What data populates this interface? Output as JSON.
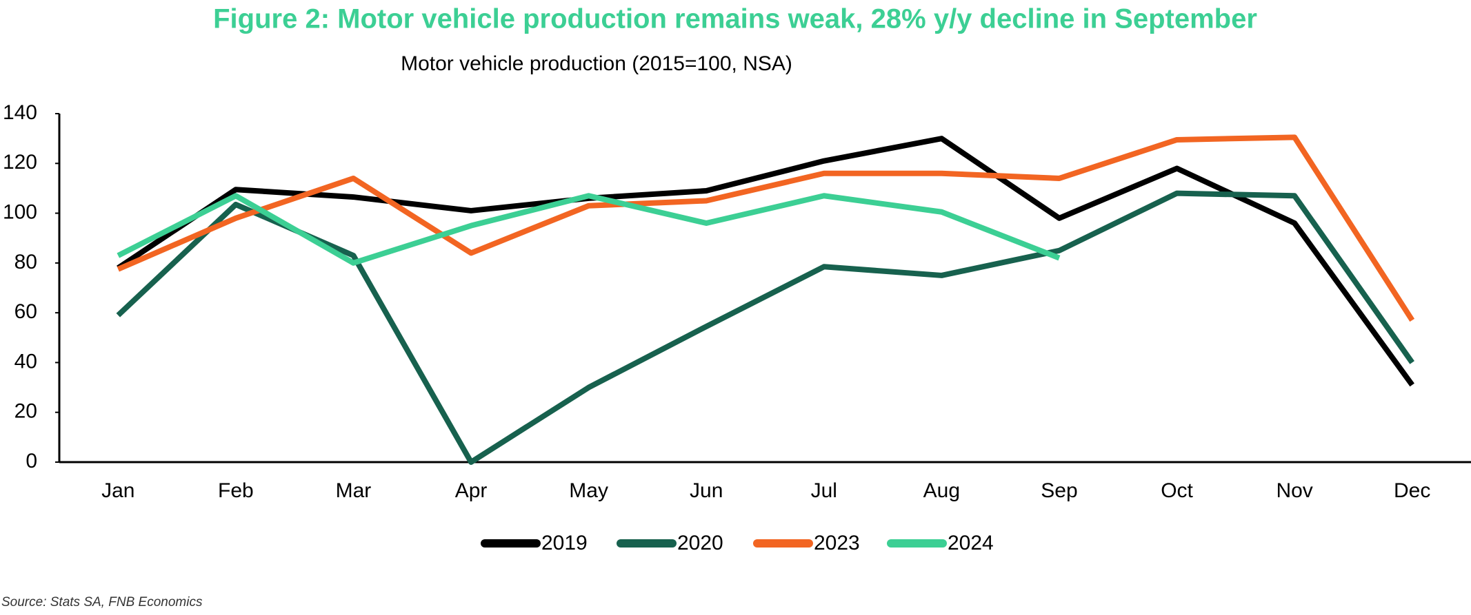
{
  "chart_data": {
    "type": "line",
    "title": "Figure 2: Motor vehicle production remains weak, 28% y/y decline in September",
    "subtitle": "Motor vehicle production (2015=100, NSA)",
    "source": "Source: Stats SA, FNB Economics",
    "categories": [
      "Jan",
      "Feb",
      "Mar",
      "Apr",
      "May",
      "Jun",
      "Jul",
      "Aug",
      "Sep",
      "Oct",
      "Nov",
      "Dec"
    ],
    "series": [
      {
        "name": "2019",
        "color": "#000000",
        "values": [
          78,
          109.5,
          106.5,
          101,
          106,
          109,
          121,
          130,
          98,
          118,
          96,
          31
        ]
      },
      {
        "name": "2020",
        "color": "#17614e",
        "values": [
          59,
          103.5,
          83,
          0,
          30,
          54.5,
          78.5,
          75,
          85,
          108,
          107,
          40
        ]
      },
      {
        "name": "2023",
        "color": "#f26522",
        "values": [
          77.5,
          98,
          114,
          84,
          103,
          105,
          116,
          116,
          114,
          129.5,
          130.5,
          57
        ]
      },
      {
        "name": "2024",
        "color": "#3ccf94",
        "values": [
          83,
          107,
          80,
          95,
          107,
          96,
          107,
          100.5,
          82,
          null,
          null,
          null
        ]
      }
    ],
    "ylim": [
      0,
      140
    ],
    "yticks": [
      0,
      20,
      40,
      60,
      80,
      100,
      120,
      140
    ],
    "grid": false,
    "legend": "bottom",
    "title_color": "#3ccf94"
  }
}
